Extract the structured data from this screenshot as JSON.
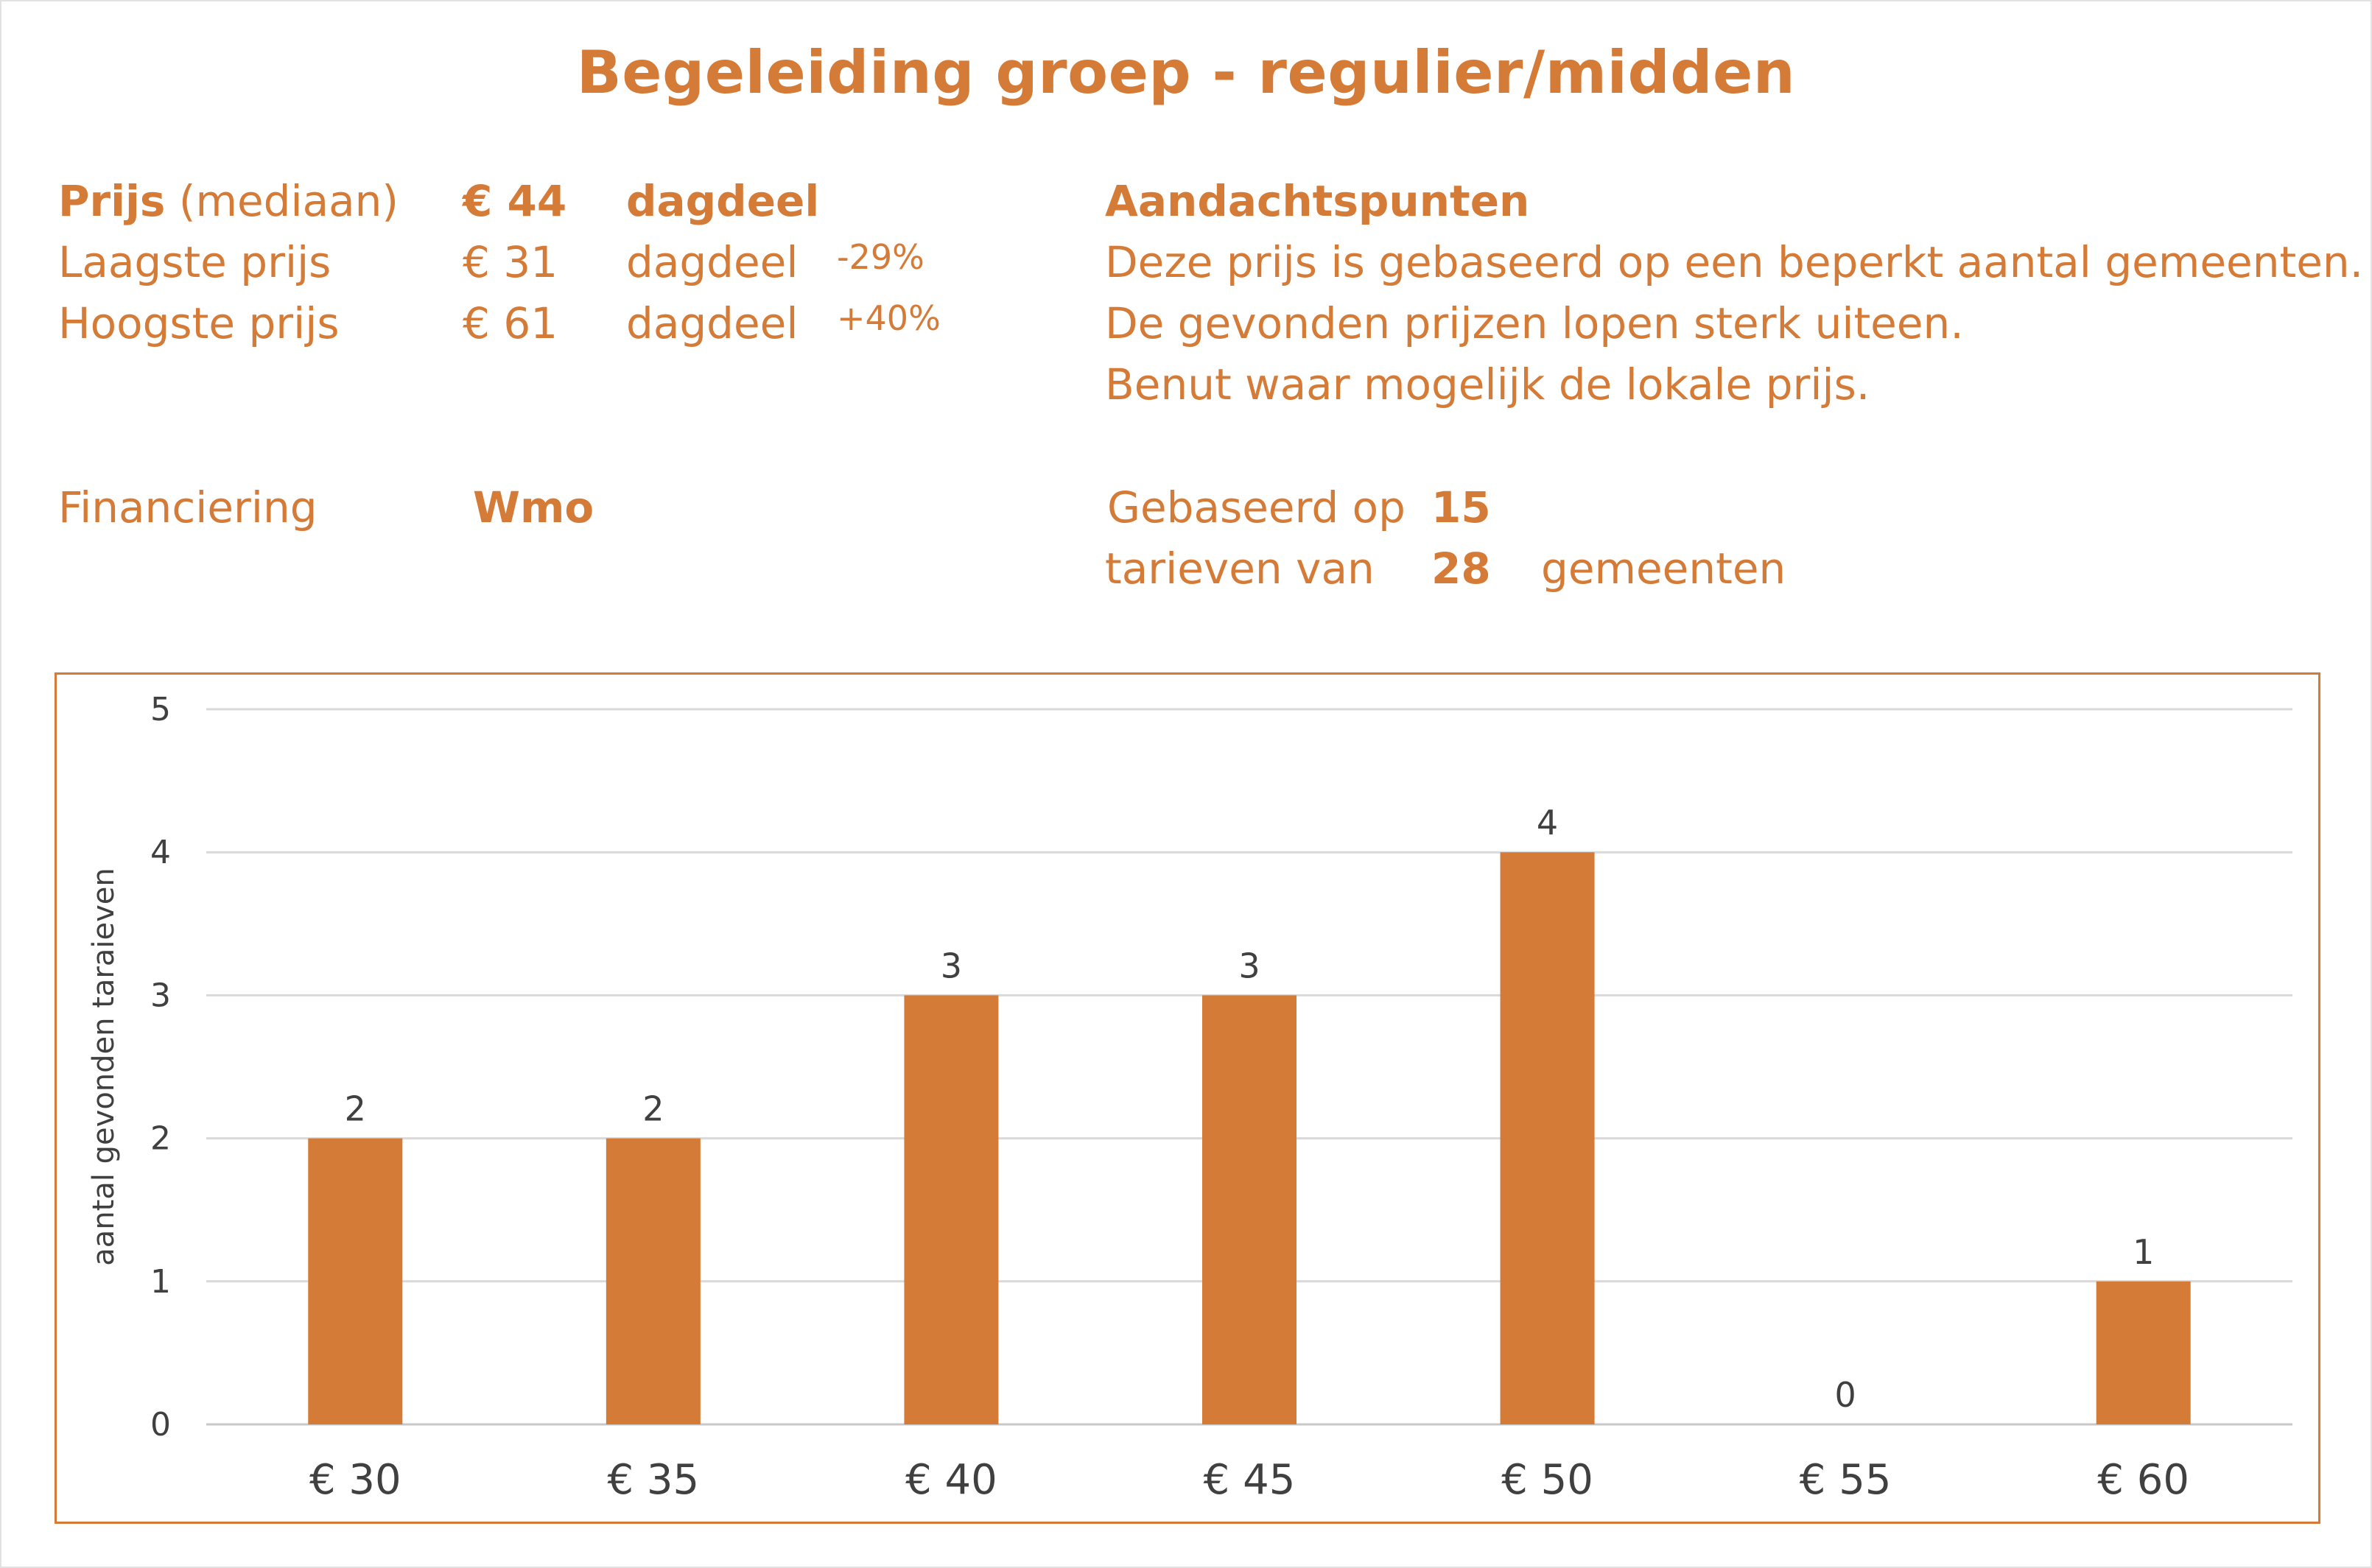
{
  "title": "Begeleiding groep - regulier/midden",
  "prices": {
    "median": {
      "label_bold": "Prijs",
      "label_rest": " (mediaan)",
      "value": "€ 44",
      "unit": "dagdeel"
    },
    "low": {
      "label": "Laagste prijs",
      "value": "€ 31",
      "unit": "dagdeel",
      "delta": "-29%"
    },
    "high": {
      "label": "Hoogste prijs",
      "value": "€ 61",
      "unit": "dagdeel",
      "delta": "+40%"
    }
  },
  "notes": {
    "heading": "Aandachtspunten",
    "lines": [
      "Deze prijs is gebaseerd op een beperkt aantal gemeenten.",
      "De gevonden prijzen lopen sterk uiteen.",
      "Benut waar mogelijk de lokale prijs."
    ]
  },
  "financing": {
    "label": "Financiering",
    "value": "Wmo"
  },
  "based_on": {
    "label1": "Gebaseerd op",
    "count1": "15",
    "label2": "tarieven van",
    "count2": "28",
    "label3": "gemeenten"
  },
  "colors": {
    "accent": "#D57B38",
    "grid": "#d9d9d9",
    "text": "#404040"
  },
  "chart_data": {
    "type": "bar",
    "categories": [
      "€ 30",
      "€ 35",
      "€ 40",
      "€ 45",
      "€ 50",
      "€ 55",
      "€ 60"
    ],
    "values": [
      2,
      2,
      3,
      3,
      4,
      0,
      1
    ],
    "title": "",
    "xlabel": "",
    "ylabel": "aantal gevonden taraieven",
    "ylim": [
      0,
      5
    ],
    "yticks": [
      0,
      1,
      2,
      3,
      4,
      5
    ],
    "grid": true
  }
}
